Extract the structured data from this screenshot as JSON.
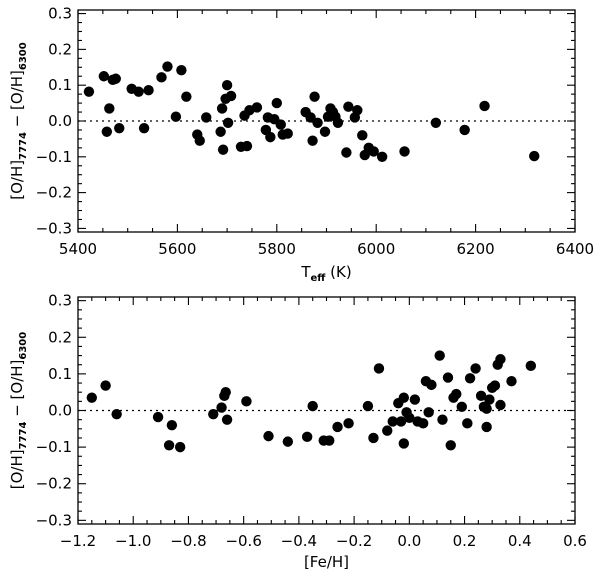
{
  "chart_data": [
    {
      "type": "scatter",
      "name": "teff-panel",
      "xlabel": {
        "main": "T",
        "sub": "eff",
        "tail": " (K)"
      },
      "ylabel": {
        "a": "[O/H]",
        "a_sub": "7774",
        "mid": " − ",
        "b": "[O/H]",
        "b_sub": "6300"
      },
      "xlim": [
        5400,
        6400
      ],
      "ylim": [
        -0.31,
        0.31
      ],
      "xticks": [
        5400,
        5600,
        5800,
        6000,
        6200,
        6400
      ],
      "xtick_labels": [
        "5400",
        "5600",
        "5800",
        "6000",
        "6200",
        "6400"
      ],
      "yticks": [
        -0.3,
        -0.2,
        -0.1,
        0.0,
        0.1,
        0.2,
        0.3
      ],
      "ytick_labels": [
        "−0.3",
        "−0.2",
        "−0.1",
        "0.0",
        "0.1",
        "0.2",
        "0.3"
      ],
      "reference_line_y": 0.0,
      "points": [
        {
          "x": 5422,
          "y": 0.082
        },
        {
          "x": 5452,
          "y": 0.125
        },
        {
          "x": 5458,
          "y": -0.03
        },
        {
          "x": 5463,
          "y": 0.035
        },
        {
          "x": 5470,
          "y": 0.115
        },
        {
          "x": 5476,
          "y": 0.118
        },
        {
          "x": 5483,
          "y": -0.02
        },
        {
          "x": 5508,
          "y": 0.09
        },
        {
          "x": 5522,
          "y": 0.082
        },
        {
          "x": 5533,
          "y": -0.02
        },
        {
          "x": 5542,
          "y": 0.086
        },
        {
          "x": 5568,
          "y": 0.122
        },
        {
          "x": 5580,
          "y": 0.152
        },
        {
          "x": 5597,
          "y": 0.012
        },
        {
          "x": 5608,
          "y": 0.142
        },
        {
          "x": 5618,
          "y": 0.068
        },
        {
          "x": 5640,
          "y": -0.038
        },
        {
          "x": 5645,
          "y": -0.055
        },
        {
          "x": 5658,
          "y": 0.01
        },
        {
          "x": 5687,
          "y": -0.03
        },
        {
          "x": 5690,
          "y": 0.035
        },
        {
          "x": 5692,
          "y": -0.08
        },
        {
          "x": 5697,
          "y": 0.062
        },
        {
          "x": 5700,
          "y": 0.1
        },
        {
          "x": 5702,
          "y": -0.005
        },
        {
          "x": 5708,
          "y": 0.07
        },
        {
          "x": 5728,
          "y": -0.072
        },
        {
          "x": 5735,
          "y": 0.015
        },
        {
          "x": 5740,
          "y": -0.07
        },
        {
          "x": 5745,
          "y": 0.03
        },
        {
          "x": 5760,
          "y": 0.038
        },
        {
          "x": 5778,
          "y": -0.025
        },
        {
          "x": 5782,
          "y": 0.01
        },
        {
          "x": 5787,
          "y": -0.045
        },
        {
          "x": 5795,
          "y": 0.005
        },
        {
          "x": 5800,
          "y": 0.05
        },
        {
          "x": 5808,
          "y": -0.01
        },
        {
          "x": 5812,
          "y": -0.038
        },
        {
          "x": 5822,
          "y": -0.035
        },
        {
          "x": 5858,
          "y": 0.025
        },
        {
          "x": 5868,
          "y": 0.01
        },
        {
          "x": 5872,
          "y": -0.055
        },
        {
          "x": 5876,
          "y": 0.068
        },
        {
          "x": 5882,
          "y": -0.005
        },
        {
          "x": 5897,
          "y": -0.03
        },
        {
          "x": 5903,
          "y": 0.012
        },
        {
          "x": 5908,
          "y": 0.035
        },
        {
          "x": 5913,
          "y": 0.025
        },
        {
          "x": 5918,
          "y": 0.012
        },
        {
          "x": 5923,
          "y": -0.005
        },
        {
          "x": 5940,
          "y": -0.088
        },
        {
          "x": 5944,
          "y": 0.04
        },
        {
          "x": 5957,
          "y": 0.01
        },
        {
          "x": 5962,
          "y": 0.03
        },
        {
          "x": 5972,
          "y": -0.04
        },
        {
          "x": 5977,
          "y": -0.095
        },
        {
          "x": 5985,
          "y": -0.075
        },
        {
          "x": 5995,
          "y": -0.085
        },
        {
          "x": 6012,
          "y": -0.1
        },
        {
          "x": 6057,
          "y": -0.085
        },
        {
          "x": 6120,
          "y": -0.005
        },
        {
          "x": 6178,
          "y": -0.025
        },
        {
          "x": 6218,
          "y": 0.042
        },
        {
          "x": 6318,
          "y": -0.098
        }
      ]
    },
    {
      "type": "scatter",
      "name": "feh-panel",
      "xlabel": {
        "main": "[Fe/H]"
      },
      "ylabel": {
        "a": "[O/H]",
        "a_sub": "7774",
        "mid": " − ",
        "b": "[O/H]",
        "b_sub": "6300"
      },
      "xlim": [
        -1.2,
        0.6
      ],
      "ylim": [
        -0.31,
        0.31
      ],
      "xticks": [
        -1.2,
        -1.0,
        -0.8,
        -0.6,
        -0.4,
        -0.2,
        0.0,
        0.2,
        0.4,
        0.6
      ],
      "xtick_labels": [
        "−1.2",
        "−1.0",
        "−0.8",
        "−0.6",
        "−0.4",
        "−0.2",
        "0.0",
        "0.2",
        "0.4",
        "0.6"
      ],
      "yticks": [
        -0.3,
        -0.2,
        -0.1,
        0.0,
        0.1,
        0.2,
        0.3
      ],
      "ytick_labels": [
        "−0.3",
        "−0.2",
        "−0.1",
        "0.0",
        "0.1",
        "0.2",
        "0.3"
      ],
      "reference_line_y": 0.0,
      "points": [
        {
          "x": -1.15,
          "y": 0.035
        },
        {
          "x": -1.1,
          "y": 0.068
        },
        {
          "x": -1.06,
          "y": -0.01
        },
        {
          "x": -0.91,
          "y": -0.018
        },
        {
          "x": -0.87,
          "y": -0.095
        },
        {
          "x": -0.86,
          "y": -0.04
        },
        {
          "x": -0.83,
          "y": -0.1
        },
        {
          "x": -0.71,
          "y": -0.01
        },
        {
          "x": -0.68,
          "y": 0.008
        },
        {
          "x": -0.67,
          "y": 0.04
        },
        {
          "x": -0.665,
          "y": 0.05
        },
        {
          "x": -0.66,
          "y": -0.025
        },
        {
          "x": -0.59,
          "y": 0.025
        },
        {
          "x": -0.51,
          "y": -0.07
        },
        {
          "x": -0.44,
          "y": -0.085
        },
        {
          "x": -0.37,
          "y": -0.072
        },
        {
          "x": -0.35,
          "y": 0.012
        },
        {
          "x": -0.31,
          "y": -0.082
        },
        {
          "x": -0.29,
          "y": -0.082
        },
        {
          "x": -0.26,
          "y": -0.045
        },
        {
          "x": -0.22,
          "y": -0.035
        },
        {
          "x": -0.15,
          "y": 0.012
        },
        {
          "x": -0.13,
          "y": -0.075
        },
        {
          "x": -0.11,
          "y": 0.115
        },
        {
          "x": -0.08,
          "y": -0.055
        },
        {
          "x": -0.06,
          "y": -0.03
        },
        {
          "x": -0.04,
          "y": 0.02
        },
        {
          "x": -0.03,
          "y": -0.03
        },
        {
          "x": -0.02,
          "y": -0.09
        },
        {
          "x": -0.02,
          "y": 0.035
        },
        {
          "x": -0.01,
          "y": -0.005
        },
        {
          "x": 0.0,
          "y": -0.02
        },
        {
          "x": 0.02,
          "y": 0.03
        },
        {
          "x": 0.03,
          "y": -0.03
        },
        {
          "x": 0.05,
          "y": -0.035
        },
        {
          "x": 0.06,
          "y": 0.08
        },
        {
          "x": 0.07,
          "y": -0.005
        },
        {
          "x": 0.08,
          "y": 0.07
        },
        {
          "x": 0.11,
          "y": 0.15
        },
        {
          "x": 0.12,
          "y": -0.025
        },
        {
          "x": 0.14,
          "y": 0.09
        },
        {
          "x": 0.15,
          "y": -0.095
        },
        {
          "x": 0.16,
          "y": 0.035
        },
        {
          "x": 0.17,
          "y": 0.045
        },
        {
          "x": 0.19,
          "y": 0.01
        },
        {
          "x": 0.21,
          "y": -0.035
        },
        {
          "x": 0.22,
          "y": 0.088
        },
        {
          "x": 0.24,
          "y": 0.115
        },
        {
          "x": 0.26,
          "y": 0.04
        },
        {
          "x": 0.27,
          "y": 0.01
        },
        {
          "x": 0.28,
          "y": -0.045
        },
        {
          "x": 0.28,
          "y": 0.005
        },
        {
          "x": 0.29,
          "y": 0.03
        },
        {
          "x": 0.3,
          "y": 0.062
        },
        {
          "x": 0.31,
          "y": 0.068
        },
        {
          "x": 0.32,
          "y": 0.125
        },
        {
          "x": 0.33,
          "y": 0.015
        },
        {
          "x": 0.33,
          "y": 0.14
        },
        {
          "x": 0.37,
          "y": 0.08
        },
        {
          "x": 0.44,
          "y": 0.122
        }
      ]
    }
  ]
}
